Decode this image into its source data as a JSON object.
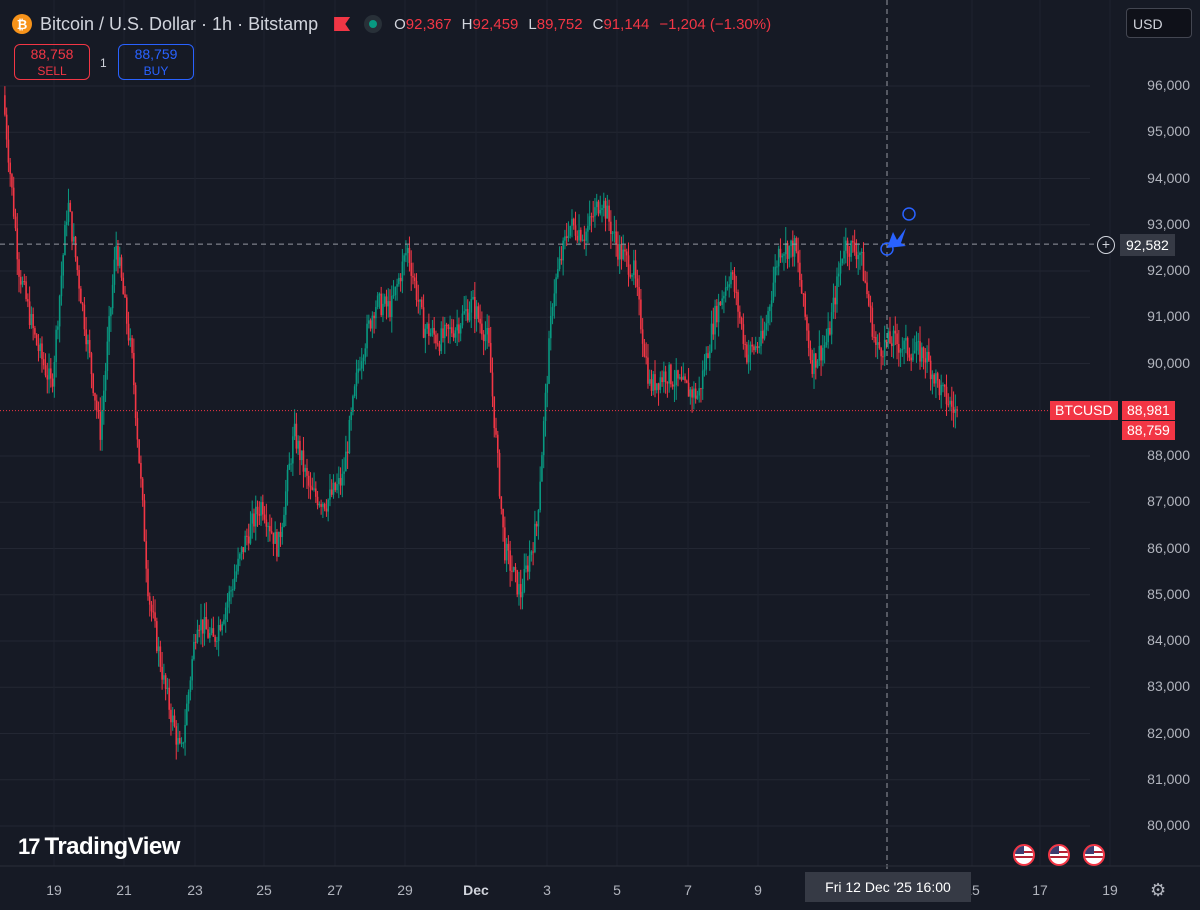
{
  "header": {
    "symbol_title": "Bitcoin / U.S. Dollar · 1h · Bitstamp",
    "coin_symbol": "₿",
    "ohlc": [
      {
        "key": "O",
        "value": "92,367"
      },
      {
        "key": "H",
        "value": "92,459"
      },
      {
        "key": "L",
        "value": "89,752"
      },
      {
        "key": "C",
        "value": "91,144"
      }
    ],
    "change": "−1,204 (−1.30%)"
  },
  "trade": {
    "sell_price": "88,758",
    "sell_label": "SELL",
    "buy_price": "88,759",
    "buy_label": "BUY",
    "spread": "1"
  },
  "currency": "USD",
  "crosshair": {
    "price": "92,582",
    "time": "Fri 12 Dec '25   16:00"
  },
  "last_price": {
    "symbol": "BTCUSD",
    "price": "88,981",
    "bid": "88,759"
  },
  "logo_text": "TradingView",
  "colors": {
    "up": "#089981",
    "down": "#f23645",
    "accent": "#2962ff",
    "background": "#161a25"
  },
  "chart_data": {
    "type": "candlestick",
    "title": "Bitcoin / U.S. Dollar · 1h · Bitstamp",
    "ylim": [
      79500,
      96800
    ],
    "y_ticks": [
      "96,000",
      "95,000",
      "94,000",
      "93,000",
      "92,000",
      "91,000",
      "90,000",
      "88,000",
      "87,000",
      "86,000",
      "85,000",
      "84,000",
      "83,000",
      "82,000",
      "81,000",
      "80,000"
    ],
    "x_ticks": [
      "19",
      "21",
      "23",
      "25",
      "27",
      "29",
      "Dec",
      "3",
      "5",
      "7",
      "9",
      "15",
      "17",
      "19"
    ],
    "grid": true,
    "series": [
      {
        "name": "BTCUSD",
        "close_path": [
          [
            "18 Nov",
            95800
          ],
          [
            "18 Nov 12:00",
            92000
          ],
          [
            "19 Nov",
            90500
          ],
          [
            "19 Nov 08:00",
            89500
          ],
          [
            "19 Nov 16:00",
            93500
          ],
          [
            "20 Nov",
            91000
          ],
          [
            "20 Nov 08:00",
            88500
          ],
          [
            "20 Nov 16:00",
            92600
          ],
          [
            "21 Nov",
            90000
          ],
          [
            "21 Nov 08:00",
            85000
          ],
          [
            "21 Nov 16:00",
            83000
          ],
          [
            "22 Nov",
            81500
          ],
          [
            "22 Nov 08:00",
            84500
          ],
          [
            "22 Nov 16:00",
            84000
          ],
          [
            "23 Nov",
            85000
          ],
          [
            "23 Nov 12:00",
            86200
          ],
          [
            "24 Nov",
            87000
          ],
          [
            "24 Nov 12:00",
            86000
          ],
          [
            "25 Nov",
            88500
          ],
          [
            "25 Nov 12:00",
            87200
          ],
          [
            "26 Nov",
            87000
          ],
          [
            "26 Nov 12:00",
            87500
          ],
          [
            "27 Nov",
            90000
          ],
          [
            "27 Nov 12:00",
            91300
          ],
          [
            "28 Nov",
            91200
          ],
          [
            "28 Nov 12:00",
            92500
          ],
          [
            "29 Nov",
            90800
          ],
          [
            "29 Nov 12:00",
            90500
          ],
          [
            "30 Nov",
            90800
          ],
          [
            "30 Nov 12:00",
            91300
          ],
          [
            "1 Dec",
            90500
          ],
          [
            "1 Dec 08:00",
            86000
          ],
          [
            "1 Dec 16:00",
            85000
          ],
          [
            "2 Dec",
            86500
          ],
          [
            "2 Dec 12:00",
            91500
          ],
          [
            "3 Dec",
            93000
          ],
          [
            "3 Dec 12:00",
            92800
          ],
          [
            "4 Dec",
            93600
          ],
          [
            "4 Dec 12:00",
            92500
          ],
          [
            "5 Dec",
            92000
          ],
          [
            "5 Dec 12:00",
            89500
          ],
          [
            "6 Dec",
            89800
          ],
          [
            "6 Dec 12:00",
            89500
          ],
          [
            "7 Dec",
            89300
          ],
          [
            "7 Dec 12:00",
            91000
          ],
          [
            "8 Dec",
            92000
          ],
          [
            "8 Dec 12:00",
            90200
          ],
          [
            "9 Dec",
            90500
          ],
          [
            "9 Dec 12:00",
            92500
          ],
          [
            "10 Dec",
            92500
          ],
          [
            "10 Dec 12:00",
            90000
          ],
          [
            "11 Dec",
            90500
          ],
          [
            "11 Dec 12:00",
            92600
          ],
          [
            "12 Dec",
            92400
          ],
          [
            "12 Dec 08:00",
            90300
          ],
          [
            "12 Dec 16:00",
            90500
          ],
          [
            "13 Dec",
            90300
          ],
          [
            "13 Dec 12:00",
            90200
          ],
          [
            "14 Dec",
            89400
          ],
          [
            "14 Dec 08:00",
            88900
          ]
        ]
      }
    ]
  }
}
